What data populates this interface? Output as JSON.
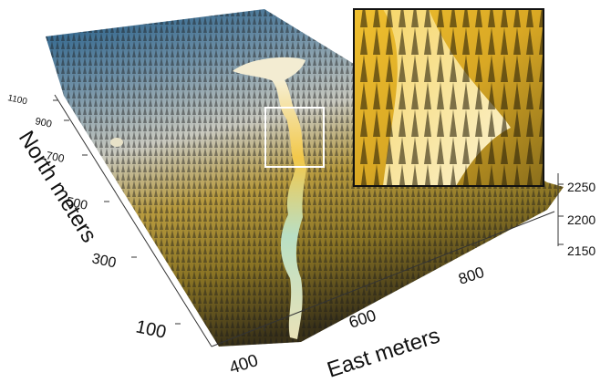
{
  "chart_data": {
    "type": "surface-3d",
    "title": "",
    "x_axis": {
      "label": "East meters",
      "ticks": [
        "400",
        "600",
        "800"
      ]
    },
    "y_axis": {
      "label": "North meters",
      "ticks": [
        "100",
        "300",
        "500",
        "700",
        "900",
        "1100"
      ]
    },
    "z_axis": {
      "label": "",
      "ticks": [
        "2150",
        "2200",
        "2250"
      ]
    },
    "inset": {
      "description": "zoomed detail of the boxed region showing individual tree crowns"
    },
    "colors": {
      "canopy_low": "#d9a824",
      "canopy_mid": "#c9c9bf",
      "canopy_high": "#1f5a86",
      "ground": "#9fd3b0",
      "ground_high": "#f4edc9",
      "highlight_box": "#ffffff"
    }
  }
}
